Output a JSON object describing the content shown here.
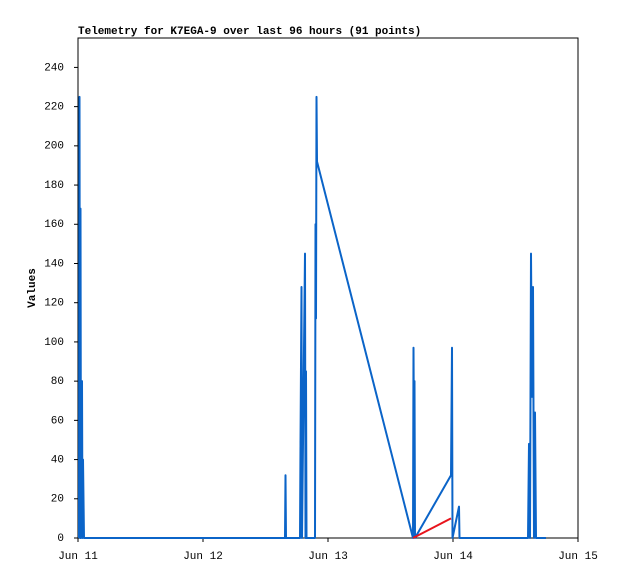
{
  "chart_data": {
    "type": "line",
    "title": "Telemetry for K7EGA-9 over last 96 hours (91 points)",
    "y_label": "Values",
    "xlim": [
      0,
      4
    ],
    "xticks": [
      {
        "value": 0,
        "label": "Jun 11"
      },
      {
        "value": 1,
        "label": "Jun 12"
      },
      {
        "value": 2,
        "label": "Jun 13"
      },
      {
        "value": 3,
        "label": "Jun 14"
      },
      {
        "value": 4,
        "label": "Jun 15"
      }
    ],
    "ylim": [
      0,
      255
    ],
    "yticks": [
      0,
      20,
      40,
      60,
      80,
      100,
      120,
      140,
      160,
      180,
      200,
      220,
      240
    ],
    "grid": false,
    "series": [
      {
        "color": "#0b64c8",
        "x": [
          0.008,
          0.012,
          0.016,
          0.02,
          0.024,
          0.032,
          0.036,
          0.04,
          0.048,
          1.656,
          1.66,
          1.664,
          1.776,
          1.78,
          1.788,
          1.792,
          1.816,
          1.82,
          1.824,
          1.828,
          1.896,
          1.9,
          1.904,
          1.908,
          1.912,
          2.68,
          2.684,
          2.688,
          2.692,
          2.696,
          2.984,
          2.992,
          2.996,
          3.048,
          3.052,
          3.6,
          3.604,
          3.608,
          3.616,
          3.624,
          3.632,
          3.64,
          3.648,
          3.656,
          3.664,
          3.744
        ],
        "values": [
          0,
          225,
          0,
          168,
          0,
          80,
          0,
          40,
          0,
          0,
          32,
          0,
          0,
          48,
          128,
          0,
          145,
          0,
          85,
          0,
          0,
          160,
          112,
          225,
          192,
          0,
          97,
          48,
          80,
          0,
          32,
          97,
          0,
          16,
          0,
          0,
          24,
          48,
          0,
          145,
          72,
          128,
          0,
          64,
          0,
          0
        ]
      },
      {
        "color": "#e8141c",
        "x": [
          2.68,
          2.984
        ],
        "values": [
          0,
          10
        ]
      }
    ]
  }
}
